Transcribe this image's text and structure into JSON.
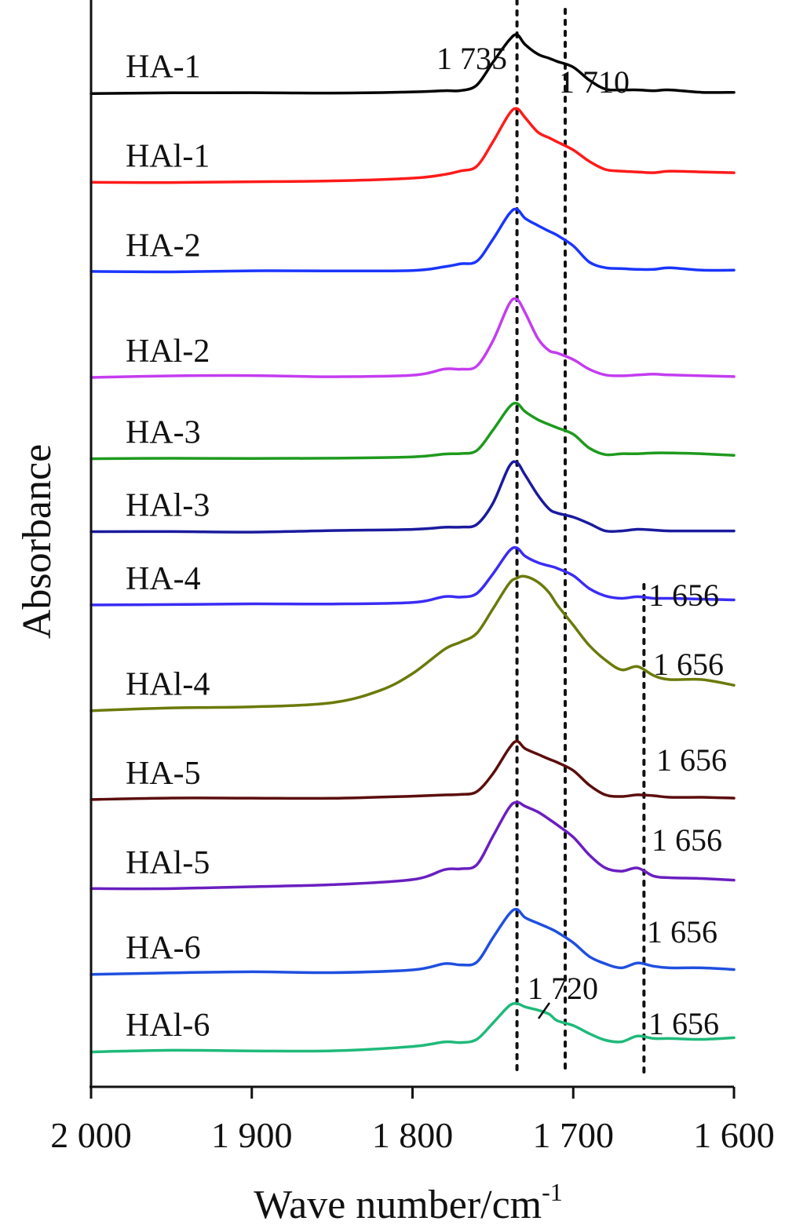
{
  "chart_data": {
    "type": "line",
    "xlabel": "Wave number/cm",
    "xlabel_sup": "-1",
    "ylabel": "Absorbance",
    "xlim": [
      2000,
      1600
    ],
    "x_reversed": true,
    "xticks": [
      {
        "value": 2000,
        "label": "2 000"
      },
      {
        "value": 1900,
        "label": "1 900"
      },
      {
        "value": 1800,
        "label": "1 800"
      },
      {
        "value": 1700,
        "label": "1 700"
      },
      {
        "value": 1600,
        "label": "1 600"
      }
    ],
    "y_ticks_shown": false,
    "grid": false,
    "legend": "none (curves labelled inline)",
    "reference_lines_x": [
      1735,
      1705,
      1656
    ],
    "annotations": [
      {
        "text": "1 735",
        "x": 1735
      },
      {
        "text": "1 710",
        "x": 1710
      },
      {
        "text": "1 720",
        "x": 1720
      },
      {
        "text": "1 656",
        "x": 1656,
        "series": "HA-4"
      },
      {
        "text": "1 656",
        "x": 1656,
        "series": "HAl-4"
      },
      {
        "text": "1 656",
        "x": 1656,
        "series": "HA-5"
      },
      {
        "text": "1 656",
        "x": 1656,
        "series": "HAl-5"
      },
      {
        "text": "1 656",
        "x": 1656,
        "series": "HA-6"
      },
      {
        "text": "1 656",
        "x": 1656,
        "series": "HAl-6"
      }
    ],
    "series": [
      {
        "name": "HA-1",
        "color": "#000000",
        "baseline": 11.8,
        "x": [
          2000,
          1950,
          1900,
          1850,
          1800,
          1780,
          1770,
          1760,
          1750,
          1740,
          1735,
          1730,
          1722,
          1715,
          1710,
          1700,
          1690,
          1680,
          1670,
          1660,
          1650,
          1640,
          1620,
          1600
        ],
        "y": [
          0,
          0,
          0.05,
          0.05,
          0.1,
          0.3,
          0.3,
          1.0,
          3.8,
          6.5,
          7.2,
          6.0,
          4.8,
          4.3,
          3.9,
          3.2,
          1.6,
          0.5,
          0.4,
          0.4,
          0.3,
          0.4,
          0.1,
          0.1
        ]
      },
      {
        "name": "HAl-1",
        "color": "#ff1a1a",
        "baseline": 10.7,
        "x": [
          2000,
          1950,
          1900,
          1850,
          1800,
          1780,
          1770,
          1760,
          1750,
          1740,
          1735,
          1730,
          1722,
          1715,
          1710,
          1700,
          1690,
          1680,
          1670,
          1660,
          1650,
          1640,
          1620,
          1600
        ],
        "y": [
          0,
          0,
          0.1,
          0.2,
          0.5,
          1.0,
          1.4,
          2.0,
          5.0,
          8.4,
          9.1,
          8.0,
          6.2,
          5.5,
          5.0,
          4.0,
          2.6,
          1.6,
          1.4,
          1.3,
          1.2,
          1.4,
          1.3,
          1.2
        ]
      },
      {
        "name": "HA-2",
        "color": "#1a35ff",
        "baseline": 9.6,
        "x": [
          2000,
          1950,
          1900,
          1850,
          1800,
          1780,
          1770,
          1760,
          1750,
          1740,
          1735,
          1730,
          1722,
          1715,
          1710,
          1700,
          1690,
          1680,
          1670,
          1660,
          1650,
          1640,
          1620,
          1600
        ],
        "y": [
          0,
          0.05,
          0.1,
          0.1,
          0.2,
          0.6,
          1.0,
          1.3,
          4.0,
          7.1,
          7.7,
          6.6,
          5.7,
          5.0,
          4.5,
          3.2,
          1.2,
          0.5,
          0.4,
          0.3,
          0.3,
          0.5,
          0.2,
          0.2
        ]
      },
      {
        "name": "HAl-2",
        "color": "#c43cf0",
        "baseline": 8.3,
        "x": [
          2000,
          1950,
          1900,
          1850,
          1800,
          1780,
          1770,
          1760,
          1750,
          1740,
          1735,
          1730,
          1722,
          1715,
          1710,
          1700,
          1690,
          1680,
          1670,
          1660,
          1650,
          1640,
          1620,
          1600
        ],
        "y": [
          0,
          0.2,
          0.2,
          0.1,
          0.3,
          1.0,
          1.0,
          1.4,
          4.5,
          9.0,
          9.6,
          8.0,
          4.8,
          3.3,
          3.0,
          2.2,
          1.0,
          0.3,
          0.2,
          0.3,
          0.4,
          0.3,
          0.2,
          0.1
        ]
      },
      {
        "name": "HA-3",
        "color": "#1e9a1e",
        "baseline": 7.3,
        "x": [
          2000,
          1950,
          1900,
          1850,
          1800,
          1780,
          1770,
          1760,
          1750,
          1740,
          1735,
          1730,
          1722,
          1715,
          1710,
          1700,
          1690,
          1680,
          1670,
          1660,
          1650,
          1640,
          1620,
          1600
        ],
        "y": [
          0,
          0,
          0.05,
          0.05,
          0.2,
          0.6,
          0.6,
          1.0,
          3.5,
          6.3,
          6.8,
          5.8,
          4.8,
          4.2,
          3.8,
          3.0,
          1.3,
          0.5,
          0.6,
          0.6,
          0.7,
          0.7,
          0.6,
          0.4
        ]
      },
      {
        "name": "HAl-3",
        "color": "#1a1a9e",
        "baseline": 6.4,
        "x": [
          2000,
          1950,
          1900,
          1850,
          1800,
          1780,
          1770,
          1760,
          1750,
          1740,
          1735,
          1730,
          1722,
          1715,
          1710,
          1700,
          1690,
          1680,
          1670,
          1660,
          1650,
          1640,
          1620,
          1600
        ],
        "y": [
          0,
          0,
          0,
          0.1,
          0.3,
          0.6,
          0.6,
          0.9,
          3.5,
          8.0,
          8.5,
          7.0,
          4.5,
          2.8,
          2.3,
          1.8,
          1.0,
          0.1,
          0.1,
          0.3,
          0.2,
          0.1,
          0.1,
          0.1
        ]
      },
      {
        "name": "HA-4",
        "color": "#3a2cf5",
        "baseline": 5.5,
        "x": [
          2000,
          1950,
          1900,
          1850,
          1800,
          1780,
          1770,
          1760,
          1750,
          1740,
          1735,
          1730,
          1722,
          1715,
          1710,
          1700,
          1690,
          1680,
          1670,
          1660,
          1650,
          1640,
          1620,
          1600
        ],
        "y": [
          0,
          0.05,
          0.1,
          0.1,
          0.3,
          1.0,
          1.0,
          1.4,
          3.8,
          6.6,
          7.0,
          6.0,
          5.2,
          4.8,
          4.5,
          3.6,
          2.0,
          1.1,
          0.8,
          1.0,
          0.8,
          0.8,
          0.7,
          0.6
        ]
      },
      {
        "name": "HAl-4",
        "color": "#6b7a0a",
        "baseline": 4.2,
        "x": [
          2000,
          1950,
          1900,
          1850,
          1820,
          1800,
          1780,
          1770,
          1760,
          1750,
          1740,
          1735,
          1730,
          1722,
          1715,
          1710,
          1700,
          1690,
          1680,
          1670,
          1660,
          1650,
          1640,
          1620,
          1600
        ],
        "y": [
          0,
          0.3,
          0.4,
          1.0,
          2.5,
          4.5,
          7.5,
          8.4,
          9.5,
          12.5,
          15.6,
          16.3,
          16.5,
          15.8,
          14.5,
          13.0,
          10.5,
          8.0,
          6.2,
          5.0,
          5.4,
          4.3,
          3.8,
          3.8,
          3.1
        ]
      },
      {
        "name": "HA-5",
        "color": "#5c0d0d",
        "baseline": 3.1,
        "x": [
          2000,
          1950,
          1900,
          1850,
          1800,
          1780,
          1770,
          1760,
          1750,
          1740,
          1735,
          1730,
          1722,
          1715,
          1710,
          1700,
          1690,
          1680,
          1670,
          1660,
          1650,
          1640,
          1620,
          1600
        ],
        "y": [
          0,
          0.2,
          0.2,
          0.2,
          0.4,
          0.6,
          0.6,
          1.0,
          3.2,
          6.3,
          7.2,
          6.3,
          5.6,
          5.0,
          4.6,
          3.6,
          1.8,
          0.6,
          0.4,
          0.6,
          0.5,
          0.3,
          0.3,
          0.2
        ]
      },
      {
        "name": "HAl-5",
        "color": "#6a1fc0",
        "baseline": 2.0,
        "x": [
          2000,
          1950,
          1900,
          1850,
          1800,
          1780,
          1770,
          1760,
          1750,
          1740,
          1735,
          1730,
          1722,
          1715,
          1710,
          1700,
          1690,
          1680,
          1670,
          1660,
          1650,
          1640,
          1620,
          1600
        ],
        "y": [
          0,
          0.1,
          0.3,
          0.5,
          1.2,
          2.4,
          2.5,
          3.0,
          6.5,
          10.0,
          10.7,
          10.2,
          9.5,
          8.6,
          7.9,
          6.4,
          4.2,
          2.6,
          2.2,
          2.6,
          1.6,
          1.4,
          1.3,
          1.1
        ]
      },
      {
        "name": "HA-6",
        "color": "#1f4fe0",
        "baseline": 0.95,
        "x": [
          2000,
          1950,
          1900,
          1850,
          1800,
          1780,
          1770,
          1760,
          1750,
          1740,
          1735,
          1730,
          1722,
          1715,
          1710,
          1700,
          1690,
          1680,
          1670,
          1660,
          1650,
          1640,
          1620,
          1600
        ],
        "y": [
          0,
          0.2,
          0.3,
          0.2,
          0.6,
          1.3,
          1.2,
          1.5,
          4.5,
          7.4,
          8.0,
          7.0,
          6.3,
          5.7,
          5.2,
          3.9,
          2.2,
          1.3,
          0.8,
          1.4,
          1.0,
          0.8,
          0.8,
          0.6
        ]
      },
      {
        "name": "HAl-6",
        "color": "#1fba7a",
        "baseline": 0.0,
        "x": [
          2000,
          1950,
          1900,
          1850,
          1800,
          1780,
          1770,
          1760,
          1750,
          1740,
          1735,
          1730,
          1722,
          1715,
          1710,
          1700,
          1690,
          1680,
          1670,
          1660,
          1650,
          1640,
          1620,
          1600
        ],
        "y": [
          0,
          0.1,
          0.1,
          0.1,
          0.6,
          1.2,
          1.1,
          1.5,
          3.5,
          5.6,
          5.9,
          5.5,
          5.1,
          4.6,
          3.8,
          3.2,
          2.2,
          1.4,
          1.2,
          1.9,
          1.6,
          1.6,
          1.5,
          1.7
        ]
      }
    ]
  }
}
